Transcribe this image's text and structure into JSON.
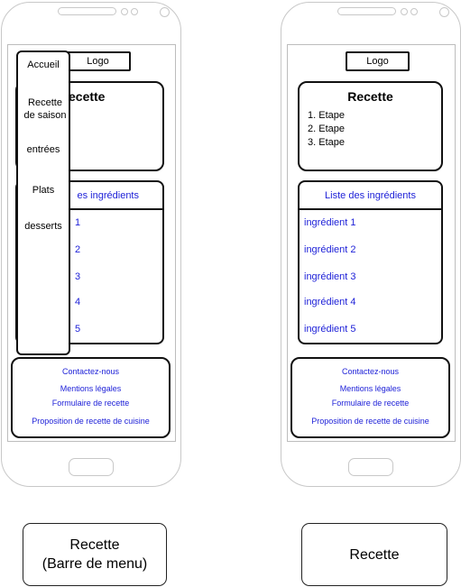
{
  "screens": [
    {
      "logo": "Logo",
      "recipe_title": "Recette",
      "recipe_title_visible": "ecette",
      "ingredients_header": "es ingrédients",
      "ingredients": [
        "1",
        "2",
        "3",
        "4",
        "5"
      ],
      "footer_links": [
        "Contactez-nous",
        "Mentions légales",
        "Formulaire de recette",
        "Proposition de recette de cuisine"
      ],
      "menu": {
        "items": [
          "Accueil",
          "Recette\nde saison",
          "entrées",
          "Plats",
          "desserts"
        ]
      },
      "caption": "Recette\n(Barre de menu)"
    },
    {
      "logo": "Logo",
      "recipe_title": "Recette",
      "steps": [
        "1. Etape",
        "2. Etape",
        "3. Etape"
      ],
      "ingredients_header": "Liste des ingrédients",
      "ingredients": [
        "ingrédient 1",
        "ingrédient 2",
        "ingrédient 3",
        "ingrédient 4",
        "ingrédient 5"
      ],
      "footer_links": [
        "Contactez-nous",
        "Mentions légales",
        "Formulaire de recette",
        "Proposition de recette de cuisine"
      ],
      "caption": "Recette"
    }
  ]
}
